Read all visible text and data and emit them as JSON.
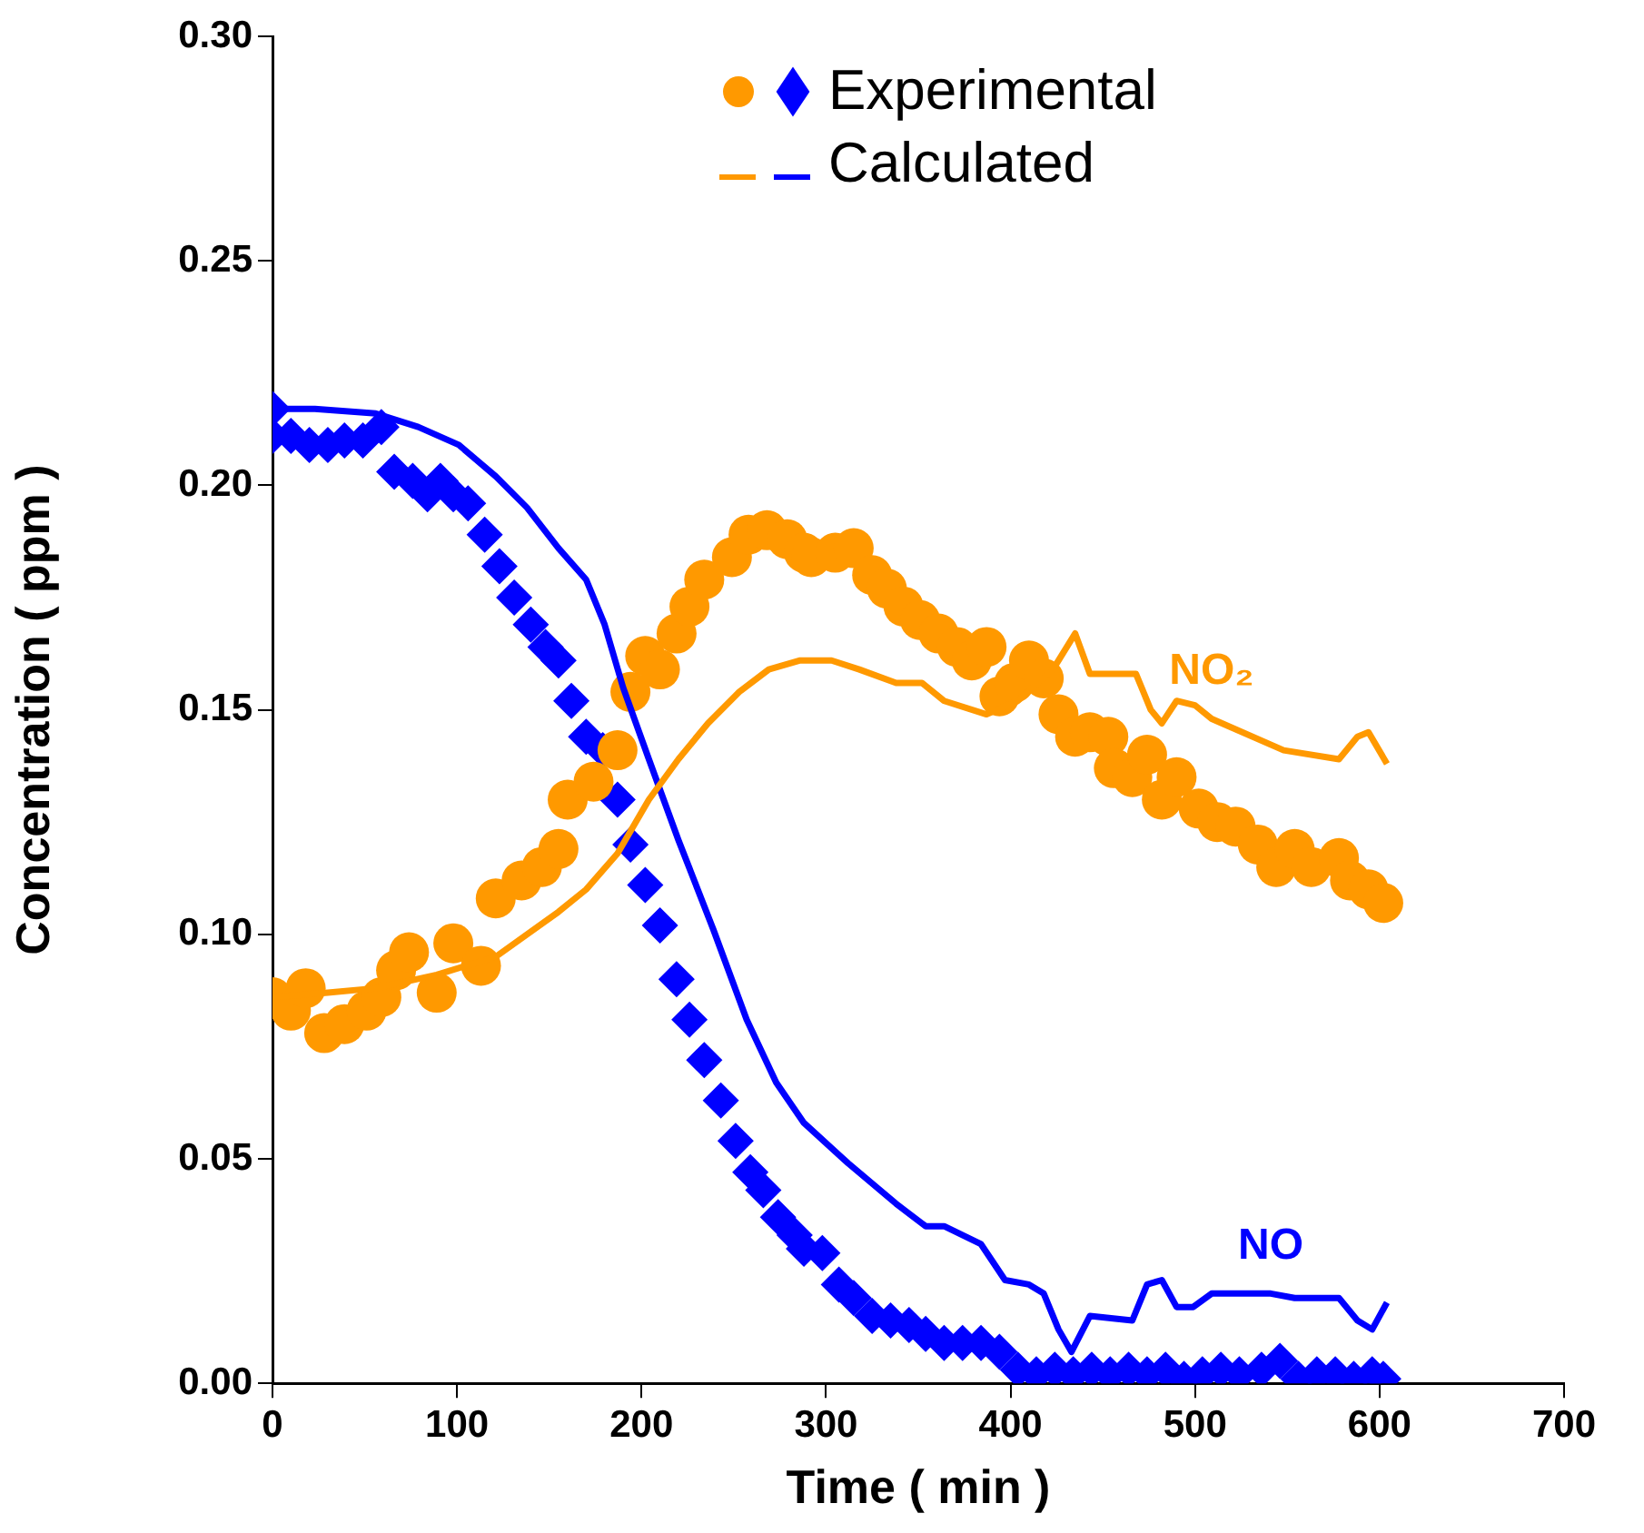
{
  "chart_data": {
    "type": "scatter",
    "xlabel": "Time ( min )",
    "ylabel": "Concentration ( ppm )",
    "xlim": [
      0,
      700
    ],
    "xticks": [
      0,
      100,
      200,
      300,
      400,
      500,
      600,
      700
    ],
    "ylim": [
      0,
      0.3
    ],
    "yticks": [
      {
        "value": 0,
        "label": "0.00"
      },
      {
        "value": 0.05,
        "label": "0.05"
      },
      {
        "value": 0.1,
        "label": "0.10"
      },
      {
        "value": 0.15,
        "label": "0.15"
      },
      {
        "value": 0.2,
        "label": "0.20"
      },
      {
        "value": 0.25,
        "label": "0.25"
      },
      {
        "value": 0.3,
        "label": "0.30"
      }
    ],
    "grid": false,
    "annotations": [
      "Experimental",
      "Calculated"
    ],
    "series": [
      {
        "marker": "circle",
        "color": "#ff9900",
        "x": [
          0,
          10,
          18,
          28,
          39,
          51,
          59,
          67,
          74,
          89,
          98,
          113,
          121,
          135,
          146,
          155,
          160,
          174,
          187,
          194,
          202,
          210,
          219,
          226,
          234,
          249,
          258,
          268,
          279,
          288,
          292,
          305,
          315,
          325,
          333,
          342,
          351,
          361,
          371,
          379,
          387,
          394,
          402,
          410,
          418,
          426,
          435,
          443,
          453,
          456,
          466,
          474,
          482,
          490,
          502,
          512,
          522,
          534,
          544,
          554,
          563,
          578,
          584,
          594,
          602
        ],
        "values": [
          0.086,
          0.083,
          0.088,
          0.078,
          0.08,
          0.083,
          0.086,
          0.092,
          0.096,
          0.087,
          0.098,
          0.093,
          0.108,
          0.112,
          0.115,
          0.119,
          0.13,
          0.134,
          0.141,
          0.154,
          0.162,
          0.159,
          0.167,
          0.173,
          0.179,
          0.184,
          0.189,
          0.19,
          0.188,
          0.185,
          0.184,
          0.185,
          0.186,
          0.18,
          0.177,
          0.173,
          0.17,
          0.167,
          0.164,
          0.161,
          0.164,
          0.153,
          0.156,
          0.161,
          0.157,
          0.149,
          0.144,
          0.145,
          0.144,
          0.137,
          0.135,
          0.14,
          0.13,
          0.135,
          0.128,
          0.125,
          0.124,
          0.12,
          0.115,
          0.119,
          0.115,
          0.117,
          0.112,
          0.11,
          0.107
        ]
      },
      {
        "marker": "diamond",
        "color": "#0000ff",
        "x": [
          0,
          0,
          10,
          20,
          30,
          39,
          49,
          59,
          66,
          76,
          84,
          91,
          98,
          106,
          115,
          123,
          131,
          140,
          148,
          155,
          162,
          170,
          179,
          187,
          194,
          202,
          210,
          219,
          226,
          234,
          243,
          251,
          259,
          266,
          274,
          283,
          288,
          298,
          307,
          315,
          325,
          335,
          345,
          354,
          364,
          374,
          384,
          394,
          404,
          414,
          424,
          434,
          444,
          454,
          464,
          474,
          484,
          494,
          504,
          514,
          524,
          536,
          546,
          556,
          566,
          576,
          586,
          596,
          602
        ],
        "values": [
          0.217,
          0.211,
          0.211,
          0.209,
          0.209,
          0.21,
          0.21,
          0.213,
          0.203,
          0.201,
          0.198,
          0.201,
          0.198,
          0.196,
          0.189,
          0.182,
          0.175,
          0.169,
          0.164,
          0.161,
          0.152,
          0.144,
          0.141,
          0.13,
          0.12,
          0.111,
          0.102,
          0.09,
          0.081,
          0.072,
          0.063,
          0.054,
          0.047,
          0.043,
          0.037,
          0.033,
          0.03,
          0.029,
          0.022,
          0.019,
          0.015,
          0.014,
          0.013,
          0.011,
          0.009,
          0.009,
          0.009,
          0.007,
          0.003,
          0.002,
          0.003,
          0.002,
          0.003,
          0.002,
          0.003,
          0.002,
          0.003,
          0.001,
          0.002,
          0.003,
          0.002,
          0.003,
          0.005,
          0.001,
          0.002,
          0.002,
          0.001,
          0.002,
          0.001
        ]
      },
      {
        "type": "line",
        "name": "NO₂",
        "marker": "none",
        "line_style": "solid",
        "color": "#ff9900",
        "x": [
          0,
          30,
          56,
          89,
          121,
          155,
          170,
          187,
          204,
          220,
          236,
          253,
          269,
          286,
          303,
          318,
          338,
          352,
          364,
          387,
          404,
          423,
          435,
          443,
          468,
          476,
          482,
          490,
          500,
          509,
          548,
          578,
          588,
          594,
          604
        ],
        "values": [
          0.086,
          0.087,
          0.088,
          0.091,
          0.095,
          0.105,
          0.11,
          0.118,
          0.13,
          0.139,
          0.147,
          0.154,
          0.159,
          0.161,
          0.161,
          0.159,
          0.156,
          0.156,
          0.152,
          0.149,
          0.152,
          0.159,
          0.167,
          0.158,
          0.158,
          0.15,
          0.147,
          0.152,
          0.151,
          0.148,
          0.141,
          0.139,
          0.144,
          0.145,
          0.138
        ]
      },
      {
        "type": "line",
        "name": "NO",
        "marker": "none",
        "line_style": "solid",
        "color": "#0000ff",
        "x": [
          0,
          23,
          56,
          79,
          101,
          121,
          138,
          155,
          170,
          180,
          190,
          204,
          220,
          239,
          257,
          273,
          288,
          312,
          338,
          354,
          364,
          384,
          397,
          410,
          418,
          426,
          433,
          443,
          466,
          474,
          482,
          490,
          499,
          509,
          541,
          554,
          578,
          588,
          596,
          604
        ],
        "values": [
          0.217,
          0.217,
          0.216,
          0.213,
          0.209,
          0.202,
          0.195,
          0.186,
          0.179,
          0.169,
          0.155,
          0.139,
          0.121,
          0.101,
          0.081,
          0.067,
          0.058,
          0.049,
          0.04,
          0.035,
          0.035,
          0.031,
          0.023,
          0.022,
          0.02,
          0.012,
          0.007,
          0.015,
          0.014,
          0.022,
          0.023,
          0.017,
          0.017,
          0.02,
          0.02,
          0.019,
          0.019,
          0.014,
          0.012,
          0.018
        ]
      }
    ]
  }
}
